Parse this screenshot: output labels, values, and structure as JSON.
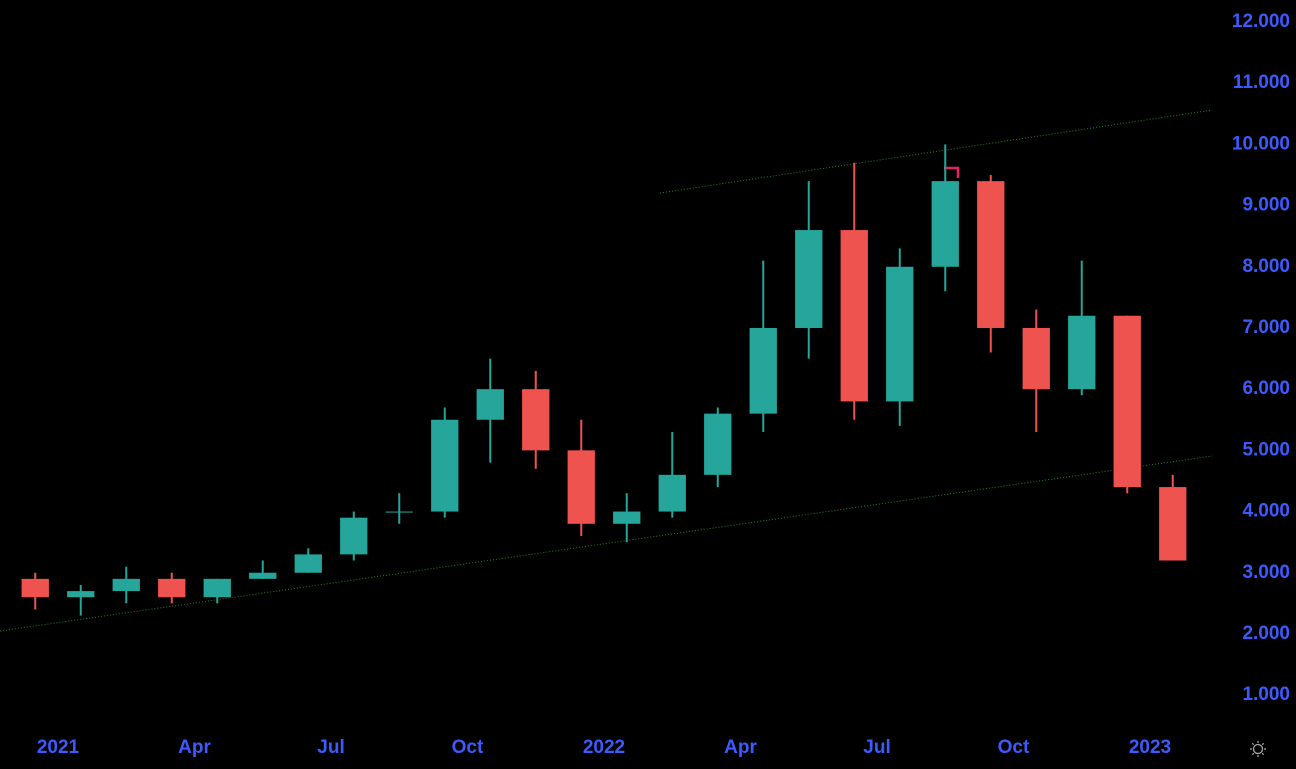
{
  "chart_data": {
    "type": "candlestick",
    "up_color": "#26a69a",
    "down_color": "#ef5350",
    "axis_color": "#3d5afe",
    "xlim": [
      "2020-12",
      "2023-02"
    ],
    "xticks": [
      {
        "value": "2021-01",
        "label": "2021"
      },
      {
        "value": "2021-04",
        "label": "Apr"
      },
      {
        "value": "2021-07",
        "label": "Jul"
      },
      {
        "value": "2021-10",
        "label": "Oct"
      },
      {
        "value": "2022-01",
        "label": "2022"
      },
      {
        "value": "2022-04",
        "label": "Apr"
      },
      {
        "value": "2022-07",
        "label": "Jul"
      },
      {
        "value": "2022-10",
        "label": "Oct"
      },
      {
        "value": "2023-01",
        "label": "2023"
      }
    ],
    "ylim": [
      0.43,
      12.36
    ],
    "yticks": [
      {
        "value": 1,
        "label": "1.000"
      },
      {
        "value": 2,
        "label": "2.000"
      },
      {
        "value": 3,
        "label": "3.000"
      },
      {
        "value": 4,
        "label": "4.000"
      },
      {
        "value": 5,
        "label": "5.000"
      },
      {
        "value": 6,
        "label": "6.000"
      },
      {
        "value": 7,
        "label": "7.000"
      },
      {
        "value": 8,
        "label": "8.000"
      },
      {
        "value": 9,
        "label": "9.000"
      },
      {
        "value": 10,
        "label": "10.000"
      },
      {
        "value": 11,
        "label": "11.000"
      },
      {
        "value": 12,
        "label": "12.000"
      }
    ],
    "x": [
      "2020-12",
      "2021-01",
      "2021-02",
      "2021-03",
      "2021-04",
      "2021-05",
      "2021-06",
      "2021-07",
      "2021-08",
      "2021-09",
      "2021-10",
      "2021-11",
      "2021-12",
      "2022-01",
      "2022-02",
      "2022-03",
      "2022-04",
      "2022-05",
      "2022-06",
      "2022-07",
      "2022-08",
      "2022-09",
      "2022-10",
      "2022-11",
      "2022-12",
      "2023-01"
    ],
    "open": [
      2.9,
      2.6,
      2.7,
      2.9,
      2.6,
      2.9,
      3.0,
      3.3,
      4.0,
      4.0,
      5.5,
      6.0,
      5.0,
      3.8,
      4.0,
      4.6,
      5.6,
      7.0,
      8.6,
      5.8,
      8.0,
      9.4,
      7.0,
      6.0,
      7.2,
      4.4
    ],
    "high": [
      3.0,
      2.8,
      3.1,
      3.0,
      2.9,
      3.2,
      3.4,
      4.0,
      4.3,
      5.7,
      6.5,
      6.3,
      5.5,
      4.3,
      5.3,
      5.7,
      8.1,
      9.4,
      9.7,
      8.3,
      10.0,
      9.5,
      7.3,
      8.1,
      7.2,
      4.6
    ],
    "low": [
      2.4,
      2.3,
      2.5,
      2.5,
      2.5,
      2.9,
      3.0,
      3.2,
      3.8,
      3.9,
      4.8,
      4.7,
      3.6,
      3.5,
      3.9,
      4.4,
      5.3,
      6.5,
      5.5,
      5.4,
      7.6,
      6.6,
      5.3,
      5.9,
      4.3,
      3.2
    ],
    "close": [
      2.6,
      2.7,
      2.9,
      2.6,
      2.9,
      3.0,
      3.3,
      3.9,
      4.0,
      5.5,
      6.0,
      5.0,
      3.8,
      4.0,
      4.6,
      5.6,
      7.0,
      8.6,
      5.8,
      8.0,
      9.4,
      7.0,
      6.0,
      7.2,
      4.4,
      3.2
    ]
  }
}
